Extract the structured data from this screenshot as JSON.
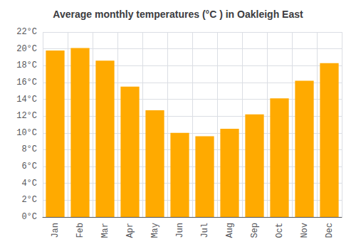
{
  "chart_data": {
    "type": "bar",
    "title": "Average monthly temperatures (°C ) in Oakleigh East",
    "categories": [
      "Jan",
      "Feb",
      "Mar",
      "Apr",
      "May",
      "Jun",
      "Jul",
      "Aug",
      "Sep",
      "Oct",
      "Nov",
      "Dec"
    ],
    "values": [
      19.8,
      20.1,
      18.6,
      15.5,
      12.7,
      10.0,
      9.6,
      10.5,
      12.2,
      14.1,
      16.2,
      18.3
    ],
    "color": "#FFAA00",
    "ylim": [
      0,
      22
    ],
    "yticks": [
      {
        "value": 0,
        "label": "0°C"
      },
      {
        "value": 2,
        "label": "2°C"
      },
      {
        "value": 4,
        "label": "4°C"
      },
      {
        "value": 6,
        "label": "6°C"
      },
      {
        "value": 8,
        "label": "8°C"
      },
      {
        "value": 10,
        "label": "10°C"
      },
      {
        "value": 12,
        "label": "12°C"
      },
      {
        "value": 14,
        "label": "14°C"
      },
      {
        "value": 16,
        "label": "16°C"
      },
      {
        "value": 18,
        "label": "18°C"
      },
      {
        "value": 20,
        "label": "20°C"
      },
      {
        "value": 22,
        "label": "22°C"
      }
    ],
    "grid": true
  }
}
